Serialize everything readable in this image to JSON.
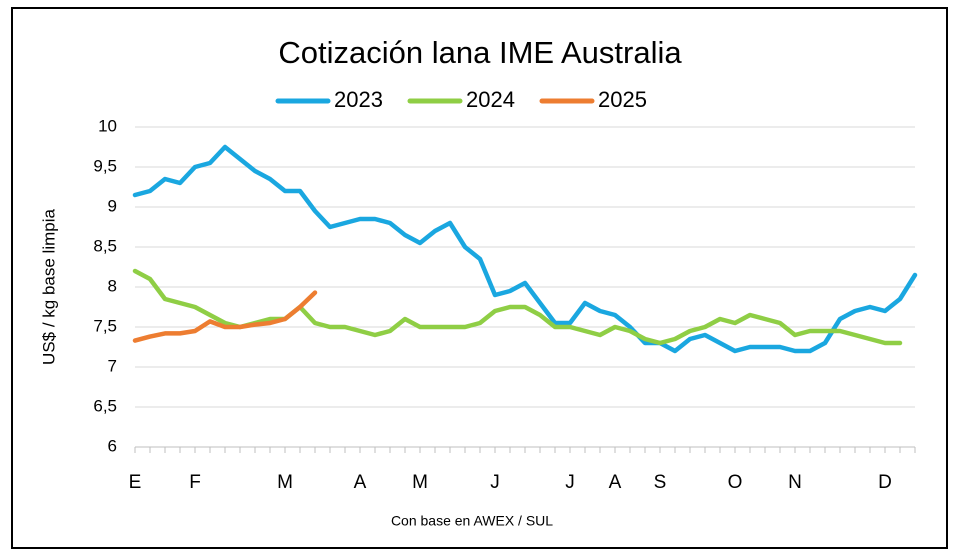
{
  "chart_data": {
    "type": "line",
    "title": "Cotización lana IME Australia",
    "y_label": "US$ / kg base limpia",
    "footnote": "Con base en AWEX / SUL",
    "categories": [
      "E",
      null,
      null,
      null,
      "F",
      null,
      null,
      null,
      null,
      null,
      "M",
      null,
      null,
      null,
      null,
      "A",
      null,
      null,
      null,
      "M",
      null,
      null,
      null,
      null,
      "J",
      null,
      null,
      null,
      null,
      "J",
      null,
      null,
      "A",
      null,
      null,
      "S",
      null,
      null,
      null,
      null,
      "O",
      null,
      null,
      null,
      "N",
      null,
      null,
      null,
      null,
      null,
      "D",
      null,
      null
    ],
    "series": [
      {
        "name": "2023",
        "color": "#1aa7e0",
        "values": [
          9.15,
          9.2,
          9.35,
          9.3,
          9.5,
          9.55,
          9.75,
          9.6,
          9.45,
          9.35,
          9.2,
          9.2,
          8.95,
          8.75,
          8.8,
          8.85,
          8.85,
          8.8,
          8.65,
          8.55,
          8.7,
          8.8,
          8.5,
          8.35,
          7.9,
          7.95,
          8.05,
          7.8,
          7.55,
          7.55,
          7.8,
          7.7,
          7.65,
          7.5,
          7.3,
          7.3,
          7.2,
          7.35,
          7.4,
          7.3,
          7.2,
          7.25,
          7.25,
          7.25,
          7.2,
          7.2,
          7.3,
          7.6,
          7.7,
          7.75,
          7.7,
          7.85,
          8.15
        ]
      },
      {
        "name": "2024",
        "color": "#8fce45",
        "values": [
          8.2,
          8.1,
          7.85,
          7.8,
          7.75,
          7.65,
          7.55,
          7.5,
          7.55,
          7.6,
          7.6,
          7.75,
          7.55,
          7.5,
          7.5,
          7.45,
          7.4,
          7.45,
          7.6,
          7.5,
          7.5,
          7.5,
          7.5,
          7.55,
          7.7,
          7.75,
          7.75,
          7.65,
          7.5,
          7.5,
          7.45,
          7.4,
          7.5,
          7.45,
          7.35,
          7.3,
          7.35,
          7.45,
          7.5,
          7.6,
          7.55,
          7.65,
          7.6,
          7.55,
          7.4,
          7.45,
          7.45,
          7.45,
          7.4,
          7.35,
          7.3,
          7.3,
          null
        ]
      },
      {
        "name": "2025",
        "color": "#ed7d31",
        "values": [
          7.33,
          7.38,
          7.42,
          7.42,
          7.45,
          7.57,
          7.5,
          7.5,
          7.53,
          7.55,
          7.6,
          7.75,
          7.93,
          null,
          null,
          null,
          null,
          null,
          null,
          null,
          null,
          null,
          null,
          null,
          null,
          null,
          null,
          null,
          null,
          null,
          null,
          null,
          null,
          null,
          null,
          null,
          null,
          null,
          null,
          null,
          null,
          null,
          null,
          null,
          null,
          null,
          null,
          null,
          null,
          null,
          null,
          null,
          null
        ]
      }
    ],
    "ylim": [
      6,
      10
    ],
    "yticks": [
      6,
      {
        "value": 6.5,
        "label": "6,5"
      },
      7,
      {
        "value": 7.5,
        "label": "7,5"
      },
      8,
      {
        "value": 8.5,
        "label": "8,5"
      },
      9,
      {
        "value": 9.5,
        "label": "9,5"
      },
      10
    ],
    "grid": true,
    "legend": "top"
  }
}
